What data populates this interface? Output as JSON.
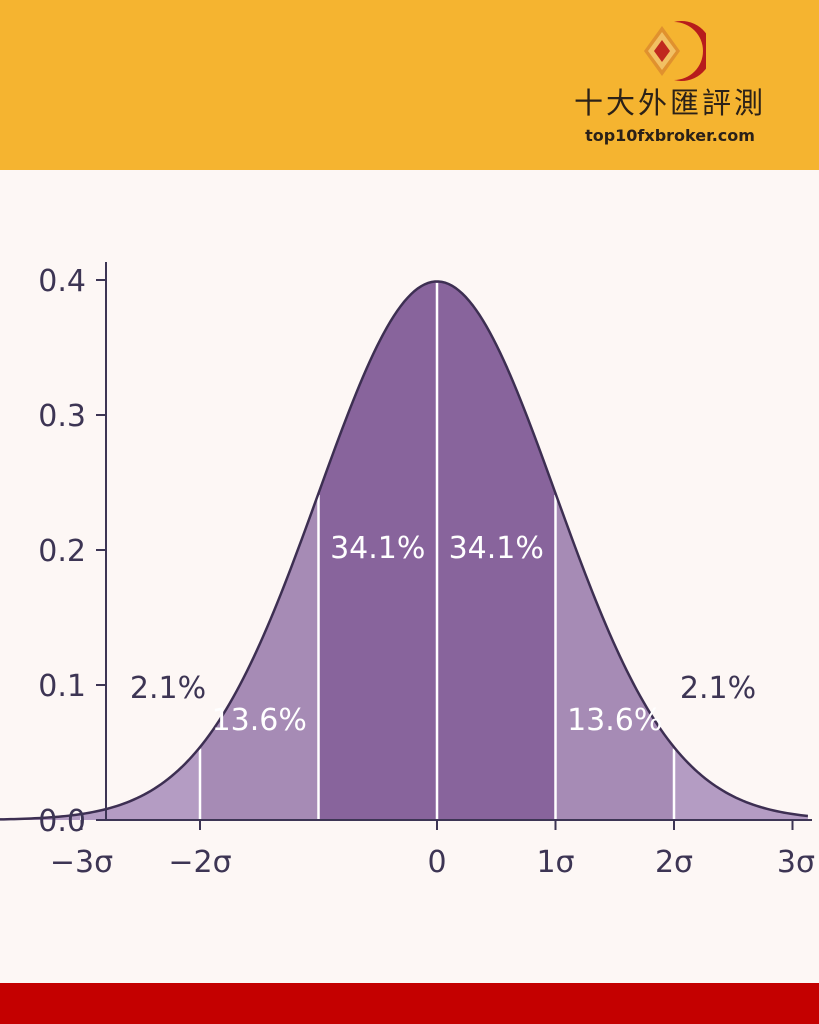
{
  "brand": {
    "name": "十大外匯評測",
    "url": "top10fxbroker.com",
    "logo_icon": "diamond-crescent-logo-icon"
  },
  "colors": {
    "header_band": "#f5b430",
    "footer_band": "#c40000",
    "background": "#fdf7f5",
    "band_inner": "#88649c",
    "band_middle": "#a68bb5",
    "band_outer": "#b49cc3",
    "curve": "#3d2f52",
    "axis_text": "#3d3554"
  },
  "chart_data": {
    "type": "area",
    "title": "",
    "xlabel": "",
    "ylabel": "",
    "distribution": "standard normal",
    "xlim": [
      -3.8,
      3.13
    ],
    "ylim": [
      0,
      0.41
    ],
    "x_ticks": [
      -3,
      -2,
      0,
      1,
      2,
      3
    ],
    "x_tick_labels": [
      "−3σ",
      "−2σ",
      "0",
      "1σ",
      "2σ",
      "3σ"
    ],
    "y_ticks": [
      0,
      0.1,
      0.2,
      0.3,
      0.4
    ],
    "y_tick_labels": [
      "0.0",
      "0.1",
      "0.2",
      "0.3",
      "0.4"
    ],
    "band_boundaries": [
      -3,
      -2,
      -1,
      0,
      1,
      2
    ],
    "segments": [
      {
        "from": -3,
        "to": -2,
        "percent": 2.1,
        "label": "2.1%"
      },
      {
        "from": -2,
        "to": -1,
        "percent": 13.6,
        "label": "13.6%"
      },
      {
        "from": -1,
        "to": 0,
        "percent": 34.1,
        "label": "34.1%"
      },
      {
        "from": 0,
        "to": 1,
        "percent": 34.1,
        "label": "34.1%"
      },
      {
        "from": 1,
        "to": 2,
        "percent": 13.6,
        "label": "13.6%"
      },
      {
        "from": 2,
        "to": 3,
        "percent": 2.1,
        "label": "2.1%"
      }
    ],
    "grid": false
  }
}
